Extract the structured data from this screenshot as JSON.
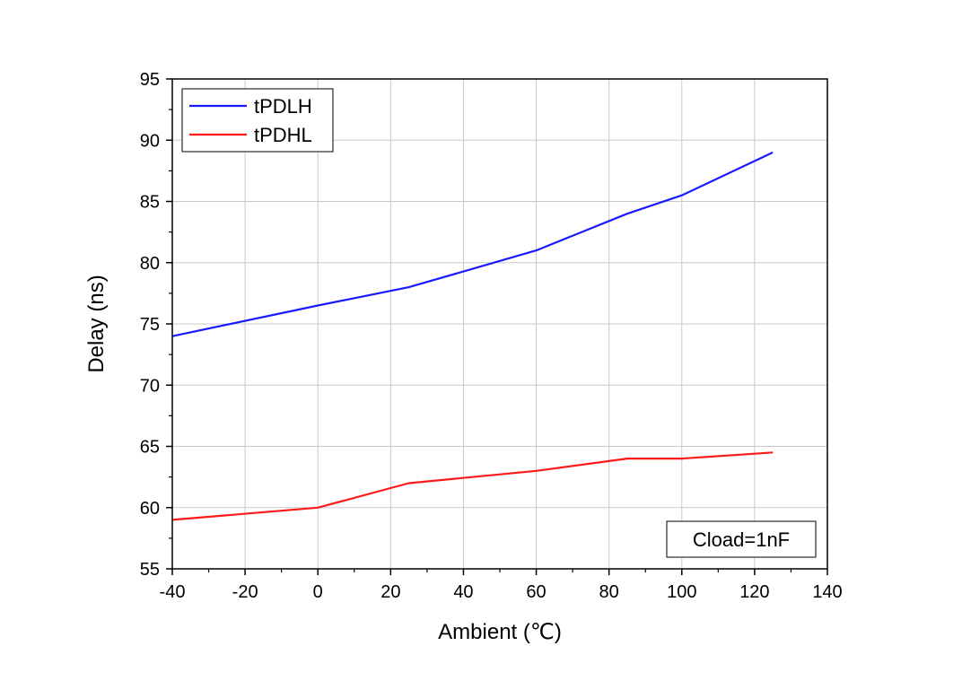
{
  "chart_data": {
    "type": "line",
    "title": "",
    "xlabel": "Ambient (℃)",
    "ylabel": "Delay (ns)",
    "xlim": [
      -40,
      140
    ],
    "ylim": [
      55,
      95
    ],
    "xticks": [
      -40,
      -20,
      0,
      20,
      40,
      60,
      80,
      100,
      120,
      140
    ],
    "yticks": [
      55,
      60,
      65,
      70,
      75,
      80,
      85,
      90,
      95
    ],
    "grid": true,
    "legend_position": "top-left",
    "series": [
      {
        "name": "tPDLH",
        "color": "#1a1aff",
        "x": [
          -40,
          0,
          25,
          60,
          85,
          100,
          125
        ],
        "y": [
          74,
          76.5,
          78,
          81,
          84,
          85.5,
          89
        ]
      },
      {
        "name": "tPDHL",
        "color": "#ff1a1a",
        "x": [
          -40,
          0,
          25,
          60,
          85,
          100,
          125
        ],
        "y": [
          59,
          60,
          62,
          63,
          64,
          64,
          64.5
        ]
      }
    ],
    "annotations": [
      {
        "text": "Cload=1nF",
        "position": "bottom-right"
      }
    ]
  }
}
